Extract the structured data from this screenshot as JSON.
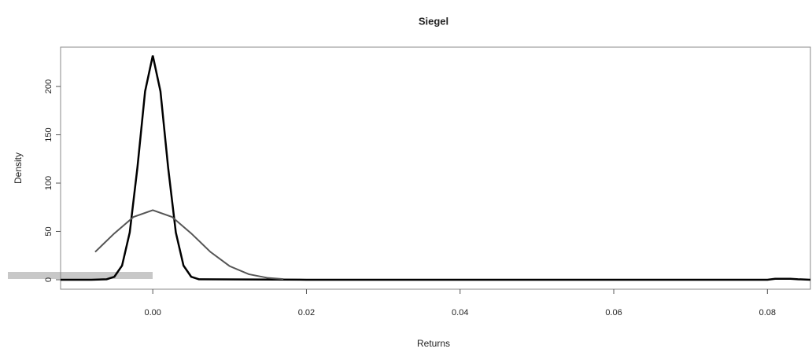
{
  "chart_data": {
    "type": "line",
    "title": "Siegel",
    "x_label": "Returns",
    "y_label": "Density",
    "xlim": [
      -0.012,
      0.0856
    ],
    "ylim": [
      -9.8,
      240.7
    ],
    "xticks": [
      {
        "value": 0,
        "label": "0.00"
      },
      {
        "value": 0.02,
        "label": "0.02"
      },
      {
        "value": 0.04,
        "label": "0.04"
      },
      {
        "value": 0.06,
        "label": "0.06"
      },
      {
        "value": 0.08,
        "label": "0.08"
      }
    ],
    "yticks": [
      0,
      50,
      100,
      150,
      200
    ],
    "series": [
      {
        "color": "#000000",
        "x": [
          -0.012,
          -0.008,
          -0.006,
          -0.005,
          -0.004,
          -0.003,
          -0.002,
          -0.001,
          0,
          0.001,
          0.002,
          0.003,
          0.004,
          0.005,
          0.006,
          0.02,
          0.04,
          0.06,
          0.08,
          0.081,
          0.083,
          0.084,
          0.0856
        ],
        "values": [
          0,
          0,
          0.5,
          3.1,
          14.6,
          48.9,
          116,
          195,
          232,
          195,
          116,
          48.9,
          14.6,
          3.1,
          0.5,
          0,
          0,
          0,
          0,
          1,
          1,
          0.5,
          0
        ]
      },
      {
        "color": "#555555",
        "x": [
          -0.0075,
          -0.005,
          -0.0025,
          0,
          0.0025,
          0.005,
          0.0075,
          0.01,
          0.0125,
          0.015,
          0.017
        ],
        "values": [
          28.8,
          48,
          65,
          72,
          65,
          48,
          28.8,
          14.1,
          5.7,
          1.85,
          0.65
        ]
      }
    ]
  }
}
